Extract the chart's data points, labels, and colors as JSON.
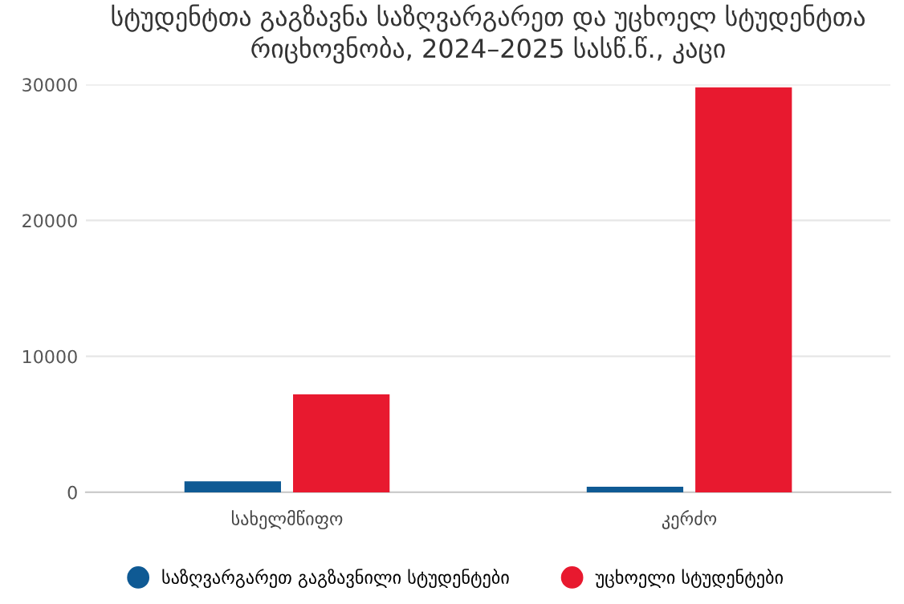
{
  "chart_data": {
    "type": "bar",
    "title": "სტუდენტთა გაგზავნა საზღვარგარეთ და უცხოელ სტუდენტთა რიცხოვნობა, 2024–2025 სასწ.წ., კაცი",
    "categories": [
      "სახელმწიფო",
      "კერძო"
    ],
    "series": [
      {
        "name": "საზღვარგარეთ გაგზავნილი სტუდენტები",
        "color": "#0f5a94",
        "values": [
          800,
          400
        ]
      },
      {
        "name": "უცხოელი სტუდენტები",
        "color": "#e8192f",
        "values": [
          7200,
          29800
        ]
      }
    ],
    "ylim": [
      0,
      30000
    ],
    "yticks": [
      0,
      10000,
      20000,
      30000
    ],
    "grid": "y",
    "legend": "bottom"
  }
}
